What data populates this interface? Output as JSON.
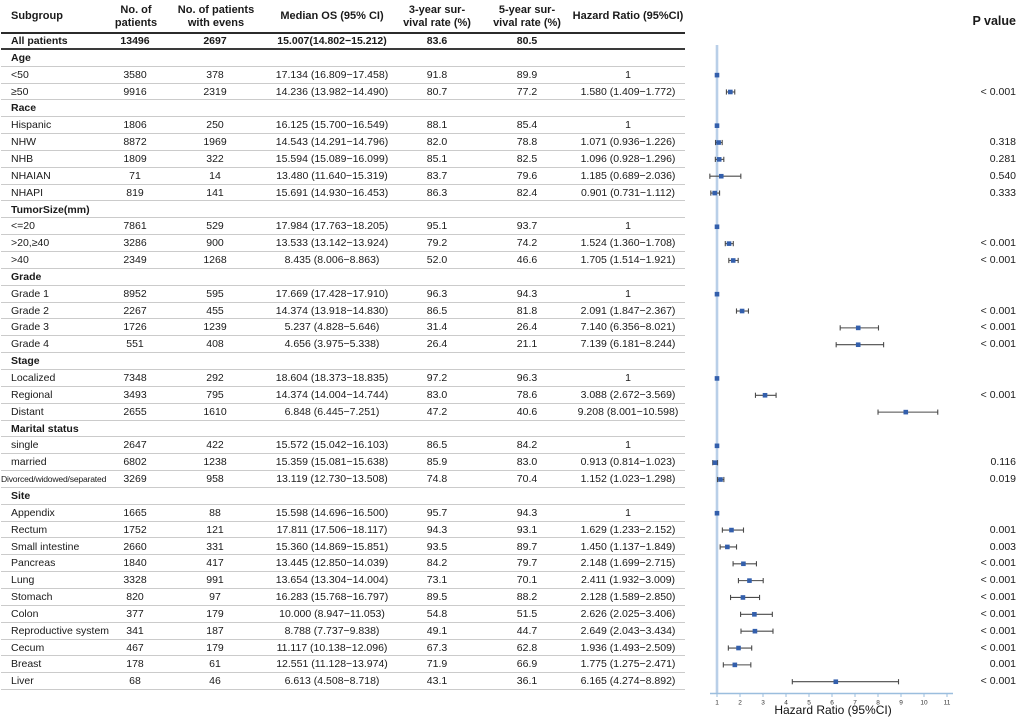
{
  "figure_title": "Subgroup survival analysis forest plot",
  "columns": {
    "subgroup": "Subgroup",
    "patients": "No. of\npatients",
    "events": "No. of patients\nwith evens",
    "median": "Median OS (95% CI)",
    "yr3": "3-year sur-\nvival rate (%)",
    "yr5": "5-year sur-\nvival rate (%)",
    "hr": "Hazard Ratio (95%CI)",
    "pvalue": "P value"
  },
  "colors": {
    "marker": "#335fac",
    "reference_line": "#b9cfe8",
    "axis": "#9bbede",
    "whisker": "#4a4a4a",
    "row_separator": "#cbcbcb"
  },
  "chart_data": {
    "type": "scatter",
    "subtype": "forest-plot",
    "xlabel": "Hazard Ratio (95%CI)",
    "xlim": [
      1,
      11
    ],
    "x_ticks": [
      1,
      2,
      3,
      4,
      5,
      6,
      7,
      8,
      9,
      10,
      11
    ],
    "reference_line": 1,
    "grid": false,
    "rows": [
      {
        "kind": "overall",
        "label": "All patients",
        "patients": "13496",
        "events": "2697",
        "median": "15.007(14.802−15.212)",
        "yr3": "83.6",
        "yr5": "80.5",
        "hr_text": "",
        "p": ""
      },
      {
        "kind": "category",
        "label": "Age"
      },
      {
        "kind": "data",
        "label": "<50",
        "patients": "3580",
        "events": "378",
        "median": "17.134 (16.809−17.458)",
        "yr3": "91.8",
        "yr5": "89.9",
        "hr_text": "1",
        "hr": 1,
        "p": ""
      },
      {
        "kind": "data",
        "label": "≥50",
        "patients": "9916",
        "events": "2319",
        "median": "14.236 (13.982−14.490)",
        "yr3": "80.7",
        "yr5": "77.2",
        "hr_text": "1.580 (1.409−1.772)",
        "hr": 1.58,
        "lo": 1.409,
        "hi": 1.772,
        "p": "< 0.001"
      },
      {
        "kind": "category",
        "label": "Race"
      },
      {
        "kind": "data",
        "label": "Hispanic",
        "patients": "1806",
        "events": "250",
        "median": "16.125 (15.700−16.549)",
        "yr3": "88.1",
        "yr5": "85.4",
        "hr_text": "1",
        "hr": 1,
        "p": ""
      },
      {
        "kind": "data",
        "label": "NHW",
        "patients": "8872",
        "events": "1969",
        "median": "14.543 (14.291−14.796)",
        "yr3": "82.0",
        "yr5": "78.8",
        "hr_text": "1.071 (0.936−1.226)",
        "hr": 1.071,
        "lo": 0.936,
        "hi": 1.226,
        "p": "0.318"
      },
      {
        "kind": "data",
        "label": "NHB",
        "patients": "1809",
        "events": "322",
        "median": "15.594 (15.089−16.099)",
        "yr3": "85.1",
        "yr5": "82.5",
        "hr_text": "1.096 (0.928−1.296)",
        "hr": 1.096,
        "lo": 0.928,
        "hi": 1.296,
        "p": "0.281"
      },
      {
        "kind": "data",
        "label": "NHAIAN",
        "patients": "71",
        "events": "14",
        "median": "13.480 (11.640−15.319)",
        "yr3": "83.7",
        "yr5": "79.6",
        "hr_text": "1.185 (0.689−2.036)",
        "hr": 1.185,
        "lo": 0.689,
        "hi": 2.036,
        "p": "0.540"
      },
      {
        "kind": "data",
        "label": "NHAPI",
        "patients": "819",
        "events": "141",
        "median": "15.691 (14.930−16.453)",
        "yr3": "86.3",
        "yr5": "82.4",
        "hr_text": "0.901 (0.731−1.112)",
        "hr": 0.901,
        "lo": 0.731,
        "hi": 1.112,
        "p": "0.333"
      },
      {
        "kind": "category",
        "label": "TumorSize(mm)"
      },
      {
        "kind": "data",
        "label": "<=20",
        "patients": "7861",
        "events": "529",
        "median": "17.984 (17.763−18.205)",
        "yr3": "95.1",
        "yr5": "93.7",
        "hr_text": "1",
        "hr": 1,
        "p": ""
      },
      {
        "kind": "data",
        "label": ">20,≥40",
        "patients": "3286",
        "events": "900",
        "median": "13.533 (13.142−13.924)",
        "yr3": "79.2",
        "yr5": "74.2",
        "hr_text": "1.524 (1.360−1.708)",
        "hr": 1.524,
        "lo": 1.36,
        "hi": 1.708,
        "p": "< 0.001"
      },
      {
        "kind": "data",
        "label": ">40",
        "patients": "2349",
        "events": "1268",
        "median": "8.435 (8.006−8.863)",
        "yr3": "52.0",
        "yr5": "46.6",
        "hr_text": "1.705 (1.514−1.921)",
        "hr": 1.705,
        "lo": 1.514,
        "hi": 1.921,
        "p": "< 0.001"
      },
      {
        "kind": "category",
        "label": "Grade"
      },
      {
        "kind": "data",
        "label": "Grade 1",
        "patients": "8952",
        "events": "595",
        "median": "17.669 (17.428−17.910)",
        "yr3": "96.3",
        "yr5": "94.3",
        "hr_text": "1",
        "hr": 1,
        "p": ""
      },
      {
        "kind": "data",
        "label": "Grade 2",
        "patients": "2267",
        "events": "455",
        "median": "14.374 (13.918−14.830)",
        "yr3": "86.5",
        "yr5": "81.8",
        "hr_text": "2.091 (1.847−2.367)",
        "hr": 2.091,
        "lo": 1.847,
        "hi": 2.367,
        "p": "< 0.001"
      },
      {
        "kind": "data",
        "label": "Grade 3",
        "patients": "1726",
        "events": "1239",
        "median": "5.237 (4.828−5.646)",
        "yr3": "31.4",
        "yr5": "26.4",
        "hr_text": "7.140 (6.356−8.021)",
        "hr": 7.14,
        "lo": 6.356,
        "hi": 8.021,
        "p": "< 0.001"
      },
      {
        "kind": "data",
        "label": "Grade 4",
        "patients": "551",
        "events": "408",
        "median": "4.656 (3.975−5.338)",
        "yr3": "26.4",
        "yr5": "21.1",
        "hr_text": "7.139 (6.181−8.244)",
        "hr": 7.139,
        "lo": 6.181,
        "hi": 8.244,
        "p": "< 0.001"
      },
      {
        "kind": "category",
        "label": "Stage"
      },
      {
        "kind": "data",
        "label": "Localized",
        "patients": "7348",
        "events": "292",
        "median": "18.604 (18.373−18.835)",
        "yr3": "97.2",
        "yr5": "96.3",
        "hr_text": "1",
        "hr": 1,
        "p": ""
      },
      {
        "kind": "data",
        "label": "Regional",
        "patients": "3493",
        "events": "795",
        "median": "14.374 (14.004−14.744)",
        "yr3": "83.0",
        "yr5": "78.6",
        "hr_text": "3.088 (2.672−3.569)",
        "hr": 3.088,
        "lo": 2.672,
        "hi": 3.569,
        "p": "< 0.001"
      },
      {
        "kind": "data",
        "label": "Distant",
        "patients": "2655",
        "events": "1610",
        "median": "6.848 (6.445−7.251)",
        "yr3": "47.2",
        "yr5": "40.6",
        "hr_text": "9.208 (8.001−10.598)",
        "hr": 9.208,
        "lo": 8.001,
        "hi": 10.598,
        "p": ""
      },
      {
        "kind": "category",
        "label": "Marital status"
      },
      {
        "kind": "data",
        "label": "single",
        "patients": "2647",
        "events": "422",
        "median": "15.572 (15.042−16.103)",
        "yr3": "86.5",
        "yr5": "84.2",
        "hr_text": "1",
        "hr": 1,
        "p": ""
      },
      {
        "kind": "data",
        "label": "married",
        "patients": "6802",
        "events": "1238",
        "median": "15.359 (15.081−15.638)",
        "yr3": "85.9",
        "yr5": "83.0",
        "hr_text": "0.913 (0.814−1.023)",
        "hr": 0.913,
        "lo": 0.814,
        "hi": 1.023,
        "p": "0.116"
      },
      {
        "kind": "data",
        "label": "Divorced/widowed/separated",
        "patients": "3269",
        "events": "958",
        "median": "13.119 (12.730−13.508)",
        "yr3": "74.8",
        "yr5": "70.4",
        "hr_text": "1.152 (1.023−1.298)",
        "hr": 1.152,
        "lo": 1.023,
        "hi": 1.298,
        "p": "0.019",
        "small_label": true
      },
      {
        "kind": "category",
        "label": "Site"
      },
      {
        "kind": "data",
        "label": "Appendix",
        "patients": "1665",
        "events": "88",
        "median": "15.598 (14.696−16.500)",
        "yr3": "95.7",
        "yr5": "94.3",
        "hr_text": "1",
        "hr": 1,
        "p": ""
      },
      {
        "kind": "data",
        "label": "Rectum",
        "patients": "1752",
        "events": "121",
        "median": "17.811 (17.506−18.117)",
        "yr3": "94.3",
        "yr5": "93.1",
        "hr_text": "1.629 (1.233−2.152)",
        "hr": 1.629,
        "lo": 1.233,
        "hi": 2.152,
        "p": "0.001"
      },
      {
        "kind": "data",
        "label": "Small intestine",
        "patients": "2660",
        "events": "331",
        "median": "15.360 (14.869−15.851)",
        "yr3": "93.5",
        "yr5": "89.7",
        "hr_text": "1.450 (1.137−1.849)",
        "hr": 1.45,
        "lo": 1.137,
        "hi": 1.849,
        "p": "0.003"
      },
      {
        "kind": "data",
        "label": "Pancreas",
        "patients": "1840",
        "events": "417",
        "median": "13.445 (12.850−14.039)",
        "yr3": "84.2",
        "yr5": "79.7",
        "hr_text": "2.148 (1.699−2.715)",
        "hr": 2.148,
        "lo": 1.699,
        "hi": 2.715,
        "p": "< 0.001"
      },
      {
        "kind": "data",
        "label": "Lung",
        "patients": "3328",
        "events": "991",
        "median": "13.654 (13.304−14.004)",
        "yr3": "73.1",
        "yr5": "70.1",
        "hr_text": "2.411 (1.932−3.009)",
        "hr": 2.411,
        "lo": 1.932,
        "hi": 3.009,
        "p": "< 0.001"
      },
      {
        "kind": "data",
        "label": "Stomach",
        "patients": "820",
        "events": "97",
        "median": "16.283 (15.768−16.797)",
        "yr3": "89.5",
        "yr5": "88.2",
        "hr_text": "2.128 (1.589−2.850)",
        "hr": 2.128,
        "lo": 1.589,
        "hi": 2.85,
        "p": "< 0.001"
      },
      {
        "kind": "data",
        "label": "Colon",
        "patients": "377",
        "events": "179",
        "median": "10.000 (8.947−11.053)",
        "yr3": "54.8",
        "yr5": "51.5",
        "hr_text": "2.626 (2.025−3.406)",
        "hr": 2.626,
        "lo": 2.025,
        "hi": 3.406,
        "p": "< 0.001"
      },
      {
        "kind": "data",
        "label": "Reproductive system",
        "patients": "341",
        "events": "187",
        "median": "8.788 (7.737−9.838)",
        "yr3": "49.1",
        "yr5": "44.7",
        "hr_text": "2.649 (2.043−3.434)",
        "hr": 2.649,
        "lo": 2.043,
        "hi": 3.434,
        "p": "< 0.001"
      },
      {
        "kind": "data",
        "label": "Cecum",
        "patients": "467",
        "events": "179",
        "median": "11.117 (10.138−12.096)",
        "yr3": "67.3",
        "yr5": "62.8",
        "hr_text": "1.936 (1.493−2.509)",
        "hr": 1.936,
        "lo": 1.493,
        "hi": 2.509,
        "p": "< 0.001"
      },
      {
        "kind": "data",
        "label": "Breast",
        "patients": "178",
        "events": "61",
        "median": "12.551 (11.128−13.974)",
        "yr3": "71.9",
        "yr5": "66.9",
        "hr_text": "1.775 (1.275−2.471)",
        "hr": 1.775,
        "lo": 1.275,
        "hi": 2.471,
        "p": "0.001"
      },
      {
        "kind": "data",
        "label": "Liver",
        "patients": "68",
        "events": "46",
        "median": "6.613 (4.508−8.718)",
        "yr3": "43.1",
        "yr5": "36.1",
        "hr_text": "6.165 (4.274−8.892)",
        "hr": 6.165,
        "lo": 4.274,
        "hi": 8.892,
        "p": "< 0.001"
      }
    ]
  }
}
